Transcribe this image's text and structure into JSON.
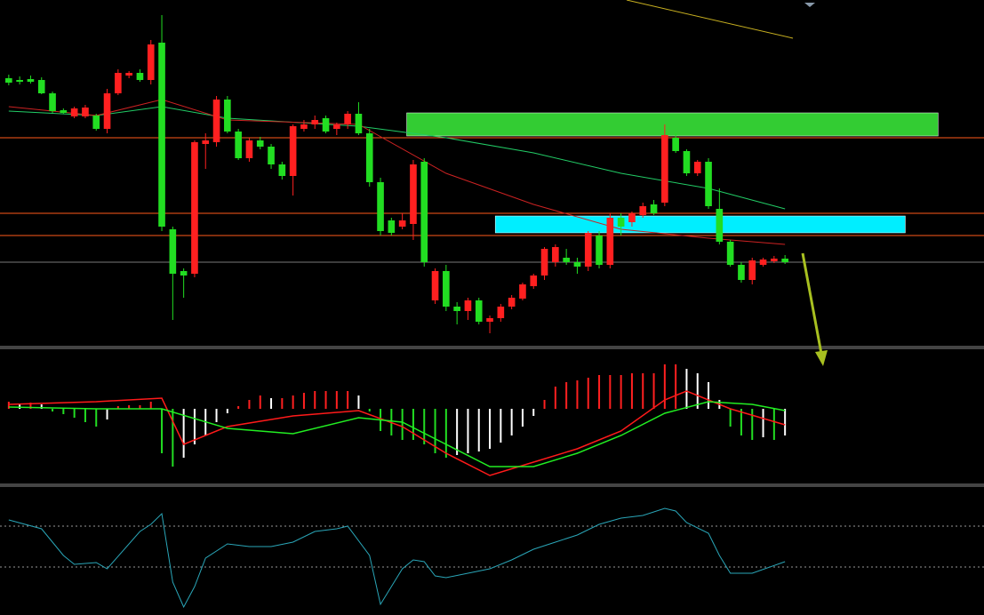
{
  "chart_data": [
    {
      "type": "candlestick",
      "xlim": [
        -0.8,
        89.2
      ],
      "ylim": [
        0,
        390
      ],
      "up_color": "#ff2020",
      "down_color": "#22dd22",
      "candles": [
        [
          302,
          306,
          294,
          297
        ],
        [
          300,
          304,
          295,
          298
        ],
        [
          301,
          305,
          296,
          298
        ],
        [
          300,
          303,
          284,
          285
        ],
        [
          285,
          287,
          263,
          265
        ],
        [
          266,
          268,
          262,
          263
        ],
        [
          259,
          270,
          257,
          268
        ],
        [
          259,
          272,
          257,
          269
        ],
        [
          260,
          262,
          243,
          245
        ],
        [
          245,
          290,
          240,
          285
        ],
        [
          285,
          312,
          283,
          308
        ],
        [
          305,
          310,
          302,
          308
        ],
        [
          308,
          312,
          298,
          300
        ],
        [
          300,
          345,
          295,
          340
        ],
        [
          342,
          373,
          130,
          135
        ],
        [
          132,
          135,
          30,
          82
        ],
        [
          85,
          88,
          55,
          80
        ],
        [
          82,
          232,
          78,
          230
        ],
        [
          228,
          240,
          200,
          232
        ],
        [
          230,
          282,
          225,
          278
        ],
        [
          278,
          282,
          240,
          242
        ],
        [
          242,
          245,
          210,
          212
        ],
        [
          212,
          235,
          208,
          232
        ],
        [
          232,
          236,
          222,
          225
        ],
        [
          225,
          228,
          200,
          205
        ],
        [
          205,
          208,
          188,
          192
        ],
        [
          192,
          250,
          170,
          248
        ],
        [
          245,
          255,
          242,
          250
        ],
        [
          250,
          260,
          245,
          255
        ],
        [
          257,
          260,
          240,
          242
        ],
        [
          245,
          252,
          238,
          250
        ],
        [
          250,
          265,
          245,
          262
        ],
        [
          262,
          275,
          238,
          240
        ],
        [
          240,
          245,
          180,
          185
        ],
        [
          185,
          190,
          125,
          130
        ],
        [
          142,
          145,
          125,
          128
        ],
        [
          135,
          150,
          132,
          142
        ],
        [
          138,
          210,
          120,
          205
        ],
        [
          208,
          212,
          90,
          95
        ],
        [
          52,
          88,
          48,
          85
        ],
        [
          85,
          92,
          40,
          45
        ],
        [
          45,
          50,
          25,
          40
        ],
        [
          40,
          55,
          30,
          52
        ],
        [
          52,
          55,
          25,
          28
        ],
        [
          28,
          35,
          15,
          32
        ],
        [
          32,
          48,
          28,
          45
        ],
        [
          45,
          58,
          42,
          55
        ],
        [
          54,
          72,
          52,
          70
        ],
        [
          68,
          82,
          65,
          80
        ],
        [
          80,
          112,
          75,
          110
        ],
        [
          95,
          115,
          90,
          112
        ],
        [
          100,
          110,
          92,
          95
        ],
        [
          95,
          100,
          82,
          90
        ],
        [
          90,
          130,
          85,
          128
        ],
        [
          125,
          130,
          88,
          92
        ],
        [
          92,
          150,
          88,
          145
        ],
        [
          145,
          150,
          125,
          135
        ],
        [
          140,
          152,
          135,
          150
        ],
        [
          148,
          162,
          145,
          158
        ],
        [
          160,
          165,
          148,
          150
        ],
        [
          162,
          250,
          158,
          238
        ],
        [
          235,
          240,
          218,
          220
        ],
        [
          220,
          222,
          192,
          195
        ],
        [
          195,
          210,
          192,
          208
        ],
        [
          208,
          212,
          155,
          158
        ],
        [
          155,
          178,
          115,
          118
        ],
        [
          118,
          120,
          90,
          92
        ],
        [
          92,
          95,
          72,
          75
        ],
        [
          75,
          100,
          70,
          97
        ],
        [
          92,
          100,
          90,
          98
        ],
        [
          96,
          102,
          94,
          99
        ],
        [
          99,
          103,
          93,
          95
        ]
      ],
      "ma": [
        {
          "color": "#22cc66",
          "x": [
            0,
            8,
            14,
            20,
            32,
            40,
            48,
            56,
            64,
            71
          ],
          "values": [
            265,
            260,
            270,
            257,
            248,
            235,
            218,
            195,
            178,
            155
          ]
        },
        {
          "color": "#cc2222",
          "x": [
            0,
            8,
            14,
            20,
            32,
            40,
            48,
            56,
            64,
            71
          ],
          "values": [
            270,
            260,
            278,
            255,
            250,
            195,
            160,
            132,
            122,
            115
          ]
        }
      ],
      "levels": [
        {
          "value": 235,
          "color": "#ff5a1a"
        },
        {
          "value": 150,
          "color": "#ff5a1a"
        },
        {
          "value": 125,
          "color": "#ff5a1a"
        },
        {
          "value": 95,
          "color": "#777777"
        }
      ],
      "zones": [
        {
          "x": [
            36.4,
            85
          ],
          "y": [
            237,
            263
          ],
          "color": "#33cc33"
        },
        {
          "x": [
            44.5,
            82
          ],
          "y": [
            128,
            147
          ],
          "color": "#00eeff"
        }
      ]
    },
    {
      "type": "macd",
      "xlim": [
        -0.8,
        89.2
      ],
      "ylim": [
        -85,
        68
      ],
      "up_color": "#ff2020",
      "down_color": "#22dd22",
      "fade_color": "#ffffff",
      "values": [
        8,
        6,
        7,
        5,
        -3,
        -6,
        -10,
        -15,
        -20,
        -12,
        3,
        4,
        4,
        8,
        -50,
        -65,
        -55,
        -40,
        -30,
        -15,
        -5,
        3,
        10,
        15,
        12,
        12,
        15,
        18,
        20,
        20,
        20,
        20,
        15,
        -3,
        -25,
        -30,
        -35,
        -35,
        -40,
        -50,
        -55,
        -52,
        -50,
        -48,
        -45,
        -38,
        -30,
        -20,
        -8,
        10,
        25,
        30,
        32,
        35,
        38,
        38,
        38,
        40,
        40,
        40,
        50,
        50,
        45,
        40,
        30,
        10,
        -20,
        -30,
        -35,
        -32,
        -35,
        -30
      ],
      "lines": [
        {
          "color": "#ff1a1a",
          "x": [
            0,
            8,
            14,
            16,
            20,
            26,
            32,
            36,
            40,
            44,
            48,
            52,
            56,
            60,
            62,
            66,
            71
          ],
          "values": [
            5,
            8,
            12,
            -40,
            -20,
            -8,
            -2,
            -20,
            -50,
            -75,
            -60,
            -45,
            -25,
            10,
            20,
            0,
            -18
          ]
        },
        {
          "color": "#22ee22",
          "x": [
            0,
            8,
            14,
            20,
            26,
            32,
            36,
            40,
            44,
            48,
            52,
            56,
            60,
            64,
            68,
            71
          ],
          "values": [
            2,
            0,
            0,
            -22,
            -28,
            -10,
            -15,
            -40,
            -65,
            -65,
            -50,
            -30,
            -5,
            8,
            5,
            -2
          ]
        }
      ]
    },
    {
      "type": "line",
      "xlim": [
        -0.8,
        89.2
      ],
      "ylim": [
        0,
        144
      ],
      "color": "#2aa6b8",
      "ref_lines": [
        100,
        54
      ],
      "x": [
        0,
        3,
        5,
        6,
        8,
        9,
        12,
        13,
        14,
        15,
        16,
        17,
        18,
        20,
        22,
        24,
        26,
        28,
        30,
        31,
        33,
        34,
        35,
        36,
        37,
        38,
        39,
        40,
        42,
        44,
        46,
        48,
        50,
        52,
        54,
        56,
        58,
        60,
        61,
        62,
        64,
        65,
        66,
        68,
        71
      ],
      "values": [
        107,
        97,
        67,
        57,
        59,
        52,
        94,
        102,
        114,
        37,
        9,
        32,
        64,
        80,
        77,
        77,
        82,
        94,
        97,
        100,
        67,
        12,
        32,
        52,
        62,
        60,
        44,
        42,
        47,
        52,
        62,
        74,
        82,
        90,
        102,
        109,
        112,
        120,
        117,
        104,
        92,
        67,
        47,
        47,
        60
      ]
    }
  ]
}
